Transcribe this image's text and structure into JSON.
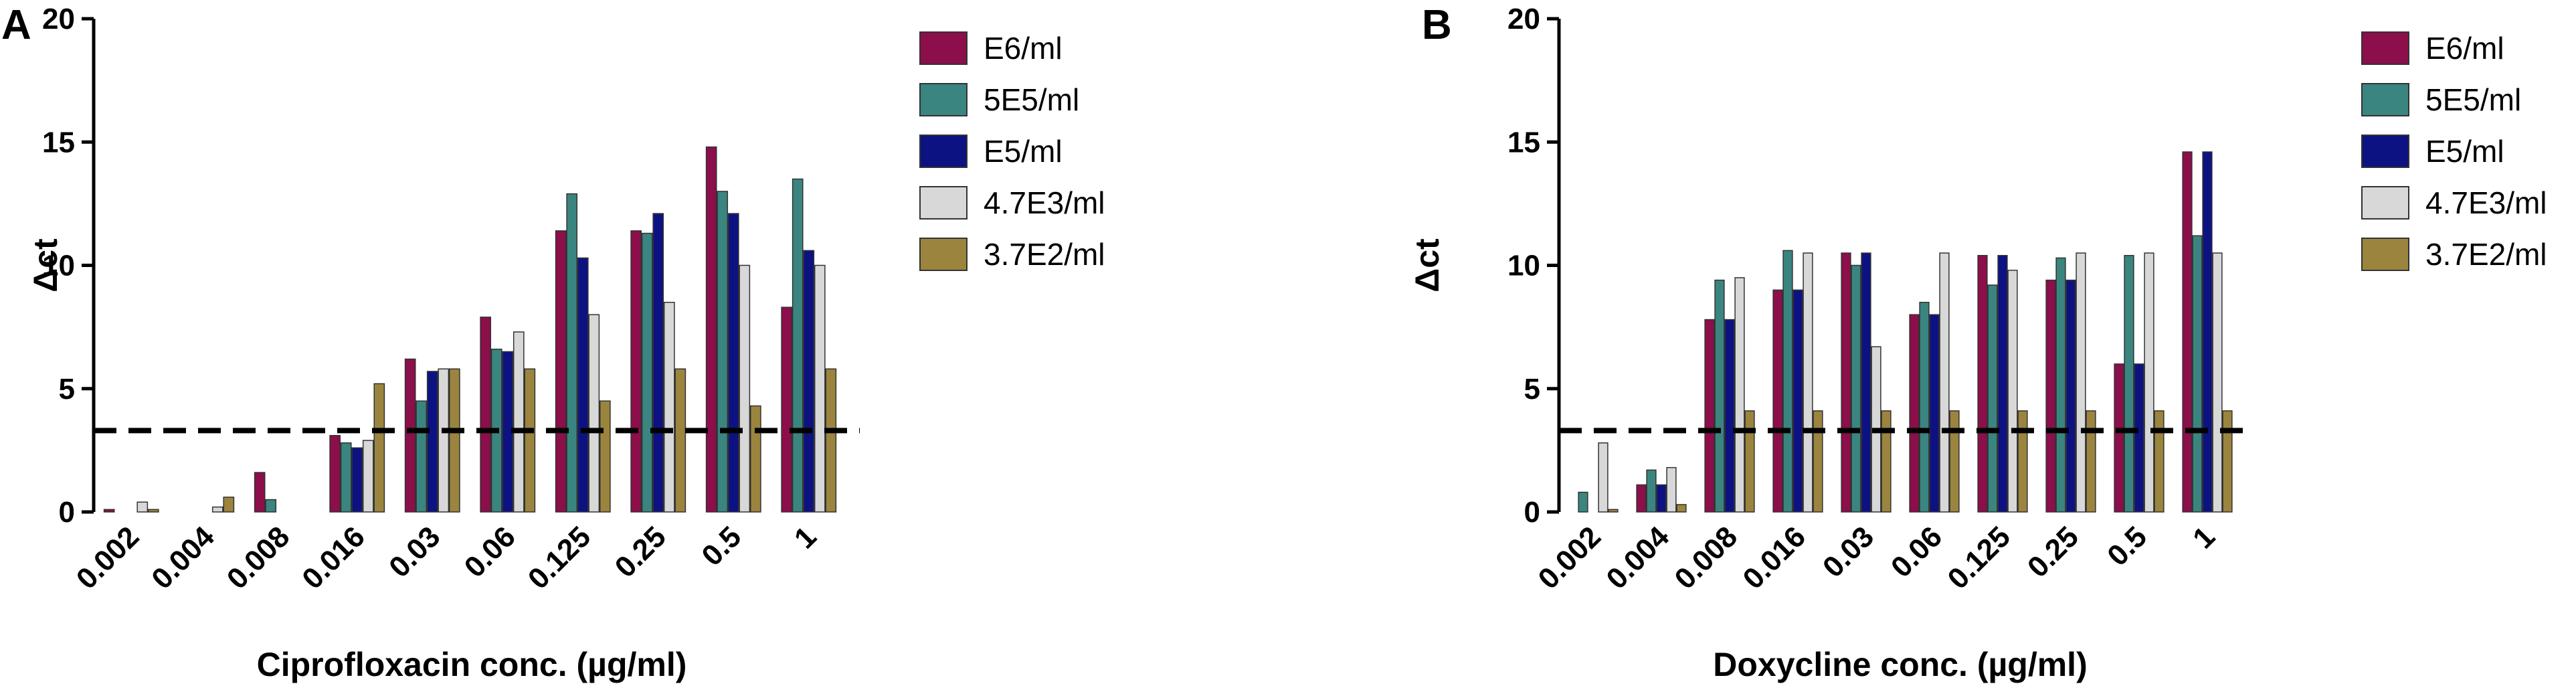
{
  "colors": {
    "E6/ml": "#8c0e4a",
    "5E5/ml": "#3a8580",
    "E5/ml": "#0d1282",
    "4.7E3/ml": "#d8d8d8",
    "3.7E2/ml": "#9b843e"
  },
  "chart_data": [
    {
      "type": "bar",
      "panel_label": "A",
      "xlabel": "Ciprofloxacin conc. (µg/ml)",
      "ylabel": "Δct",
      "ylim": [
        0,
        20
      ],
      "yticks": [
        "0",
        "5",
        "10",
        "15",
        "20"
      ],
      "threshold": 3.3,
      "legend_position": "top-right",
      "categories": [
        "0.002",
        "0.004",
        "0.008",
        "0.016",
        "0.03",
        "0.06",
        "0.125",
        "0.25",
        "0.5",
        "1"
      ],
      "series": [
        {
          "name": "E6/ml",
          "values": [
            0.1,
            0.0,
            1.6,
            3.1,
            6.2,
            7.9,
            11.4,
            11.4,
            14.8,
            8.3
          ]
        },
        {
          "name": "5E5/ml",
          "values": [
            0.0,
            0.0,
            0.5,
            2.8,
            4.5,
            6.6,
            12.9,
            11.3,
            13.0,
            13.5
          ]
        },
        {
          "name": "E5/ml",
          "values": [
            0.0,
            0.0,
            0.0,
            2.6,
            5.7,
            6.5,
            10.3,
            12.1,
            12.1,
            10.6
          ]
        },
        {
          "name": "4.7E3/ml",
          "values": [
            0.4,
            0.2,
            0.0,
            2.9,
            5.8,
            7.3,
            8.0,
            8.5,
            10.0,
            10.0
          ]
        },
        {
          "name": "3.7E2/ml",
          "values": [
            0.1,
            0.6,
            0.0,
            5.2,
            5.8,
            5.8,
            4.5,
            5.8,
            4.3,
            5.8
          ]
        }
      ]
    },
    {
      "type": "bar",
      "panel_label": "B",
      "xlabel": "Doxycline conc. (µg/ml)",
      "ylabel": "Δct",
      "ylim": [
        0,
        20
      ],
      "yticks": [
        "0",
        "5",
        "10",
        "15",
        "20"
      ],
      "threshold": 3.3,
      "legend_position": "top-right",
      "categories": [
        "0.002",
        "0.004",
        "0.008",
        "0.016",
        "0.03",
        "0.06",
        "0.125",
        "0.25",
        "0.5",
        "1"
      ],
      "series": [
        {
          "name": "E6/ml",
          "values": [
            0.0,
            1.1,
            7.8,
            9.0,
            10.5,
            8.0,
            10.4,
            9.4,
            6.0,
            14.6
          ]
        },
        {
          "name": "5E5/ml",
          "values": [
            0.8,
            1.7,
            9.4,
            10.6,
            10.0,
            8.5,
            9.2,
            10.3,
            10.4,
            11.2
          ]
        },
        {
          "name": "E5/ml",
          "values": [
            0.0,
            1.1,
            7.8,
            9.0,
            10.5,
            8.0,
            10.4,
            9.4,
            6.0,
            14.6
          ]
        },
        {
          "name": "4.7E3/ml",
          "values": [
            2.8,
            1.8,
            9.5,
            10.5,
            6.7,
            10.5,
            9.8,
            10.5,
            10.5,
            10.5
          ]
        },
        {
          "name": "3.7E2/ml",
          "values": [
            0.1,
            0.3,
            4.1,
            4.1,
            4.1,
            4.1,
            4.1,
            4.1,
            4.1,
            4.1
          ]
        }
      ]
    }
  ]
}
